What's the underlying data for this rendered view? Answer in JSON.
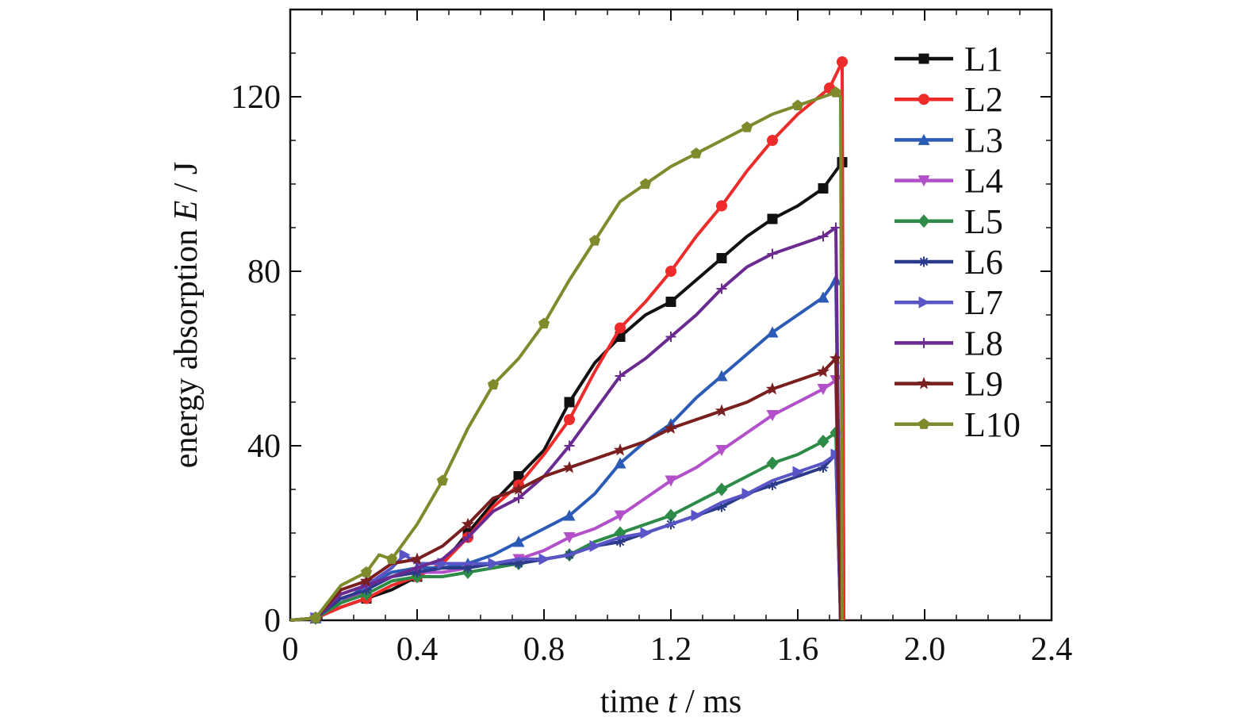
{
  "chart_data": {
    "type": "line",
    "xlabel_parts": [
      "time ",
      "t",
      " / ms"
    ],
    "ylabel_parts": [
      "energy absorption ",
      "E",
      " / J"
    ],
    "xlim": [
      0,
      2.4
    ],
    "ylim": [
      0,
      140
    ],
    "xticks": [
      "0",
      "0.4",
      "0.8",
      "1.2",
      "1.6",
      "2.0",
      "2.4"
    ],
    "xtick_values": [
      0,
      0.4,
      0.8,
      1.2,
      1.6,
      2.0,
      2.4
    ],
    "yticks": [
      "0",
      "40",
      "80",
      "120"
    ],
    "ytick_values": [
      0,
      40,
      80,
      120
    ],
    "grid": false,
    "legend_position": "top-right",
    "series": [
      {
        "name": "L1",
        "color": "#111111",
        "marker": "square",
        "points": [
          [
            0,
            0
          ],
          [
            0.08,
            0.5
          ],
          [
            0.16,
            3
          ],
          [
            0.24,
            5
          ],
          [
            0.32,
            7
          ],
          [
            0.4,
            10
          ],
          [
            0.48,
            13
          ],
          [
            0.56,
            20
          ],
          [
            0.64,
            27
          ],
          [
            0.72,
            33
          ],
          [
            0.8,
            39
          ],
          [
            0.88,
            50
          ],
          [
            0.96,
            59
          ],
          [
            1.04,
            65
          ],
          [
            1.12,
            70
          ],
          [
            1.2,
            73
          ],
          [
            1.28,
            78
          ],
          [
            1.36,
            83
          ],
          [
            1.44,
            88
          ],
          [
            1.52,
            92
          ],
          [
            1.6,
            95
          ],
          [
            1.68,
            99
          ],
          [
            1.74,
            105
          ]
        ]
      },
      {
        "name": "L2",
        "color": "#ee2b2b",
        "marker": "circle",
        "points": [
          [
            0,
            0
          ],
          [
            0.08,
            0.5
          ],
          [
            0.16,
            3
          ],
          [
            0.24,
            5
          ],
          [
            0.32,
            8
          ],
          [
            0.4,
            10
          ],
          [
            0.48,
            13
          ],
          [
            0.56,
            19
          ],
          [
            0.64,
            26
          ],
          [
            0.72,
            31
          ],
          [
            0.8,
            38
          ],
          [
            0.88,
            46
          ],
          [
            0.96,
            57
          ],
          [
            1.04,
            67
          ],
          [
            1.12,
            73
          ],
          [
            1.2,
            80
          ],
          [
            1.28,
            88
          ],
          [
            1.36,
            95
          ],
          [
            1.44,
            103
          ],
          [
            1.52,
            110
          ],
          [
            1.6,
            116
          ],
          [
            1.7,
            122
          ],
          [
            1.74,
            128
          ]
        ]
      },
      {
        "name": "L3",
        "color": "#2c5bb5",
        "marker": "triangle-up",
        "points": [
          [
            0,
            0
          ],
          [
            0.08,
            0.5
          ],
          [
            0.16,
            4
          ],
          [
            0.24,
            8
          ],
          [
            0.32,
            11
          ],
          [
            0.4,
            12
          ],
          [
            0.48,
            12
          ],
          [
            0.56,
            13
          ],
          [
            0.64,
            15
          ],
          [
            0.72,
            18
          ],
          [
            0.8,
            21
          ],
          [
            0.88,
            24
          ],
          [
            0.96,
            29
          ],
          [
            1.04,
            36
          ],
          [
            1.12,
            41
          ],
          [
            1.2,
            45
          ],
          [
            1.28,
            51
          ],
          [
            1.36,
            56
          ],
          [
            1.44,
            61
          ],
          [
            1.52,
            66
          ],
          [
            1.6,
            70
          ],
          [
            1.68,
            74
          ],
          [
            1.72,
            78
          ]
        ]
      },
      {
        "name": "L4",
        "color": "#b250c9",
        "marker": "triangle-down",
        "points": [
          [
            0,
            0
          ],
          [
            0.08,
            0.5
          ],
          [
            0.16,
            4
          ],
          [
            0.24,
            7
          ],
          [
            0.32,
            10
          ],
          [
            0.4,
            11
          ],
          [
            0.48,
            11
          ],
          [
            0.56,
            12
          ],
          [
            0.64,
            13
          ],
          [
            0.72,
            14
          ],
          [
            0.8,
            16
          ],
          [
            0.88,
            19
          ],
          [
            0.96,
            21
          ],
          [
            1.04,
            24
          ],
          [
            1.12,
            28
          ],
          [
            1.2,
            32
          ],
          [
            1.28,
            35
          ],
          [
            1.36,
            39
          ],
          [
            1.44,
            43
          ],
          [
            1.52,
            47
          ],
          [
            1.6,
            50
          ],
          [
            1.68,
            53
          ],
          [
            1.72,
            55
          ]
        ]
      },
      {
        "name": "L5",
        "color": "#2e8b47",
        "marker": "diamond",
        "points": [
          [
            0,
            0
          ],
          [
            0.08,
            0.5
          ],
          [
            0.16,
            4
          ],
          [
            0.24,
            6
          ],
          [
            0.32,
            9
          ],
          [
            0.4,
            10
          ],
          [
            0.48,
            10
          ],
          [
            0.56,
            11
          ],
          [
            0.64,
            12
          ],
          [
            0.72,
            13
          ],
          [
            0.8,
            14
          ],
          [
            0.88,
            15
          ],
          [
            0.96,
            18
          ],
          [
            1.04,
            20
          ],
          [
            1.12,
            22
          ],
          [
            1.2,
            24
          ],
          [
            1.28,
            27
          ],
          [
            1.36,
            30
          ],
          [
            1.44,
            33
          ],
          [
            1.52,
            36
          ],
          [
            1.6,
            38
          ],
          [
            1.68,
            41
          ],
          [
            1.72,
            43
          ]
        ]
      },
      {
        "name": "L6",
        "color": "#2c3a8a",
        "marker": "asterisk",
        "points": [
          [
            0,
            0
          ],
          [
            0.08,
            0.5
          ],
          [
            0.16,
            5
          ],
          [
            0.24,
            7
          ],
          [
            0.32,
            10
          ],
          [
            0.4,
            11
          ],
          [
            0.48,
            12
          ],
          [
            0.56,
            12
          ],
          [
            0.64,
            13
          ],
          [
            0.72,
            13
          ],
          [
            0.8,
            14
          ],
          [
            0.88,
            15
          ],
          [
            0.96,
            17
          ],
          [
            1.04,
            18
          ],
          [
            1.12,
            20
          ],
          [
            1.2,
            22
          ],
          [
            1.28,
            24
          ],
          [
            1.36,
            26
          ],
          [
            1.44,
            29
          ],
          [
            1.52,
            31
          ],
          [
            1.6,
            33
          ],
          [
            1.68,
            35
          ],
          [
            1.72,
            38
          ]
        ]
      },
      {
        "name": "L7",
        "color": "#5a55c6",
        "marker": "triangle-right",
        "points": [
          [
            0,
            0
          ],
          [
            0.08,
            0.5
          ],
          [
            0.16,
            6
          ],
          [
            0.24,
            8
          ],
          [
            0.32,
            12
          ],
          [
            0.36,
            15
          ],
          [
            0.4,
            13
          ],
          [
            0.48,
            13
          ],
          [
            0.56,
            13
          ],
          [
            0.64,
            13
          ],
          [
            0.72,
            14
          ],
          [
            0.8,
            14
          ],
          [
            0.88,
            15
          ],
          [
            0.96,
            17
          ],
          [
            1.04,
            19
          ],
          [
            1.12,
            20
          ],
          [
            1.2,
            22
          ],
          [
            1.28,
            24
          ],
          [
            1.36,
            27
          ],
          [
            1.44,
            29
          ],
          [
            1.52,
            32
          ],
          [
            1.6,
            34
          ],
          [
            1.68,
            36
          ],
          [
            1.72,
            38
          ]
        ]
      },
      {
        "name": "L8",
        "color": "#6b2a8f",
        "marker": "plus",
        "points": [
          [
            0,
            0
          ],
          [
            0.08,
            0.5
          ],
          [
            0.16,
            6
          ],
          [
            0.24,
            8
          ],
          [
            0.32,
            10
          ],
          [
            0.4,
            12
          ],
          [
            0.48,
            14
          ],
          [
            0.56,
            19
          ],
          [
            0.64,
            25
          ],
          [
            0.72,
            28
          ],
          [
            0.8,
            33
          ],
          [
            0.88,
            40
          ],
          [
            0.96,
            48
          ],
          [
            1.04,
            56
          ],
          [
            1.12,
            60
          ],
          [
            1.2,
            65
          ],
          [
            1.28,
            70
          ],
          [
            1.36,
            76
          ],
          [
            1.44,
            81
          ],
          [
            1.52,
            84
          ],
          [
            1.6,
            86
          ],
          [
            1.68,
            88
          ],
          [
            1.72,
            90
          ]
        ]
      },
      {
        "name": "L9",
        "color": "#7a1f1f",
        "marker": "star",
        "points": [
          [
            0,
            0
          ],
          [
            0.08,
            0.5
          ],
          [
            0.16,
            7
          ],
          [
            0.24,
            9
          ],
          [
            0.32,
            13
          ],
          [
            0.4,
            14
          ],
          [
            0.48,
            17
          ],
          [
            0.56,
            22
          ],
          [
            0.64,
            28
          ],
          [
            0.72,
            30
          ],
          [
            0.8,
            33
          ],
          [
            0.88,
            35
          ],
          [
            0.96,
            37
          ],
          [
            1.04,
            39
          ],
          [
            1.12,
            41
          ],
          [
            1.2,
            44
          ],
          [
            1.28,
            46
          ],
          [
            1.36,
            48
          ],
          [
            1.44,
            50
          ],
          [
            1.52,
            53
          ],
          [
            1.6,
            55
          ],
          [
            1.68,
            57
          ],
          [
            1.72,
            60
          ]
        ]
      },
      {
        "name": "L10",
        "color": "#7f8a2c",
        "marker": "pentagon",
        "points": [
          [
            0,
            0
          ],
          [
            0.08,
            0.5
          ],
          [
            0.16,
            8
          ],
          [
            0.24,
            11
          ],
          [
            0.28,
            15
          ],
          [
            0.32,
            14
          ],
          [
            0.4,
            22
          ],
          [
            0.48,
            32
          ],
          [
            0.56,
            44
          ],
          [
            0.64,
            54
          ],
          [
            0.72,
            60
          ],
          [
            0.8,
            68
          ],
          [
            0.88,
            78
          ],
          [
            0.96,
            87
          ],
          [
            1.04,
            96
          ],
          [
            1.12,
            100
          ],
          [
            1.2,
            104
          ],
          [
            1.28,
            107
          ],
          [
            1.36,
            110
          ],
          [
            1.44,
            113
          ],
          [
            1.52,
            116
          ],
          [
            1.6,
            118
          ],
          [
            1.68,
            120
          ],
          [
            1.72,
            121
          ],
          [
            1.735,
            120
          ],
          [
            1.74,
            0
          ]
        ]
      }
    ]
  }
}
